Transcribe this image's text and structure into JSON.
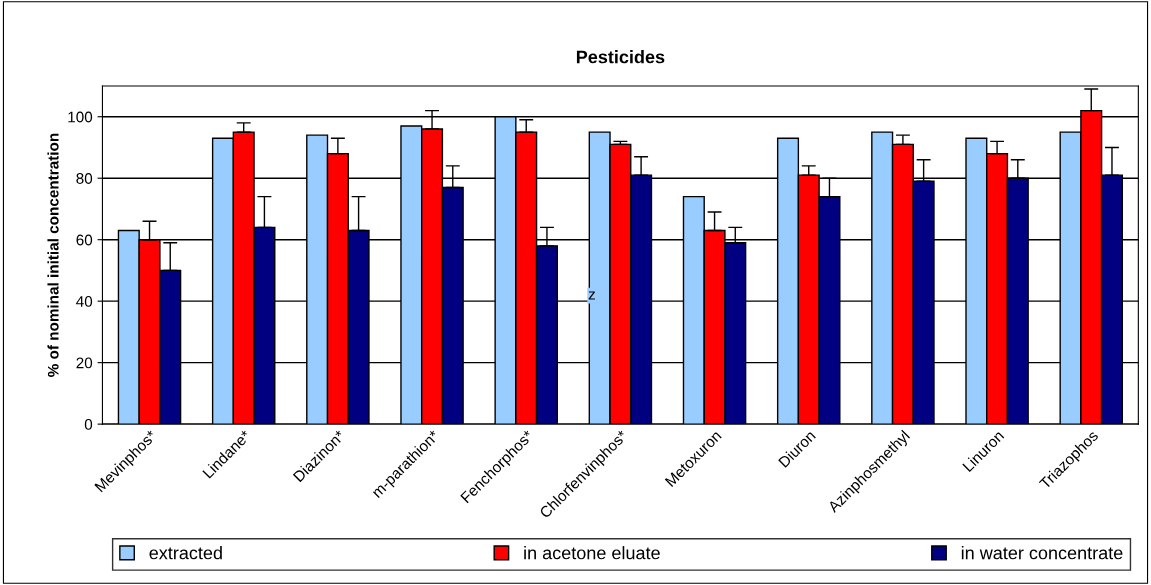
{
  "chart_data": {
    "type": "bar",
    "title": "Pesticides",
    "ylabel": "% of nominal initial concentration",
    "categories": [
      "Mevinphos*",
      "Lindane*",
      "Diazinon*",
      "m-parathion*",
      "Fenchorphos*",
      "Chlorfenvinphos*",
      "Metoxuron",
      "Diuron",
      "Azinphosmethyl",
      "Linuron",
      "Triazophos"
    ],
    "series": [
      {
        "name": "extracted",
        "color": "#99ccff",
        "values": [
          63,
          93,
          94,
          97,
          100,
          95,
          74,
          93,
          95,
          93,
          95
        ]
      },
      {
        "name": "in acetone eluate",
        "color": "#ff0000",
        "values": [
          60,
          95,
          88,
          96,
          95,
          91,
          63,
          81,
          91,
          88,
          102
        ],
        "errors": [
          [
            60,
            66
          ],
          [
            95,
            98
          ],
          [
            88,
            93
          ],
          [
            96,
            102
          ],
          [
            95,
            99
          ],
          [
            91,
            92
          ],
          [
            63,
            69
          ],
          [
            81,
            84
          ],
          [
            91,
            94
          ],
          [
            88,
            92
          ],
          [
            102,
            109
          ]
        ]
      },
      {
        "name": "in water concentrate",
        "color": "#000080",
        "values": [
          50,
          64,
          63,
          77,
          58,
          81,
          59,
          74,
          79,
          80,
          81
        ],
        "errors": [
          [
            50,
            59
          ],
          [
            64,
            74
          ],
          [
            63,
            74
          ],
          [
            77,
            84
          ],
          [
            58,
            64
          ],
          [
            81,
            87
          ],
          [
            59,
            64
          ],
          [
            74,
            80
          ],
          [
            79,
            86
          ],
          [
            80,
            86
          ],
          [
            81,
            90
          ]
        ]
      }
    ],
    "annotations": [
      "z"
    ],
    "ylim": [
      0,
      110
    ],
    "yticks": [
      0,
      20,
      40,
      60,
      80,
      100
    ],
    "grid": "y",
    "legend": "bottom"
  }
}
